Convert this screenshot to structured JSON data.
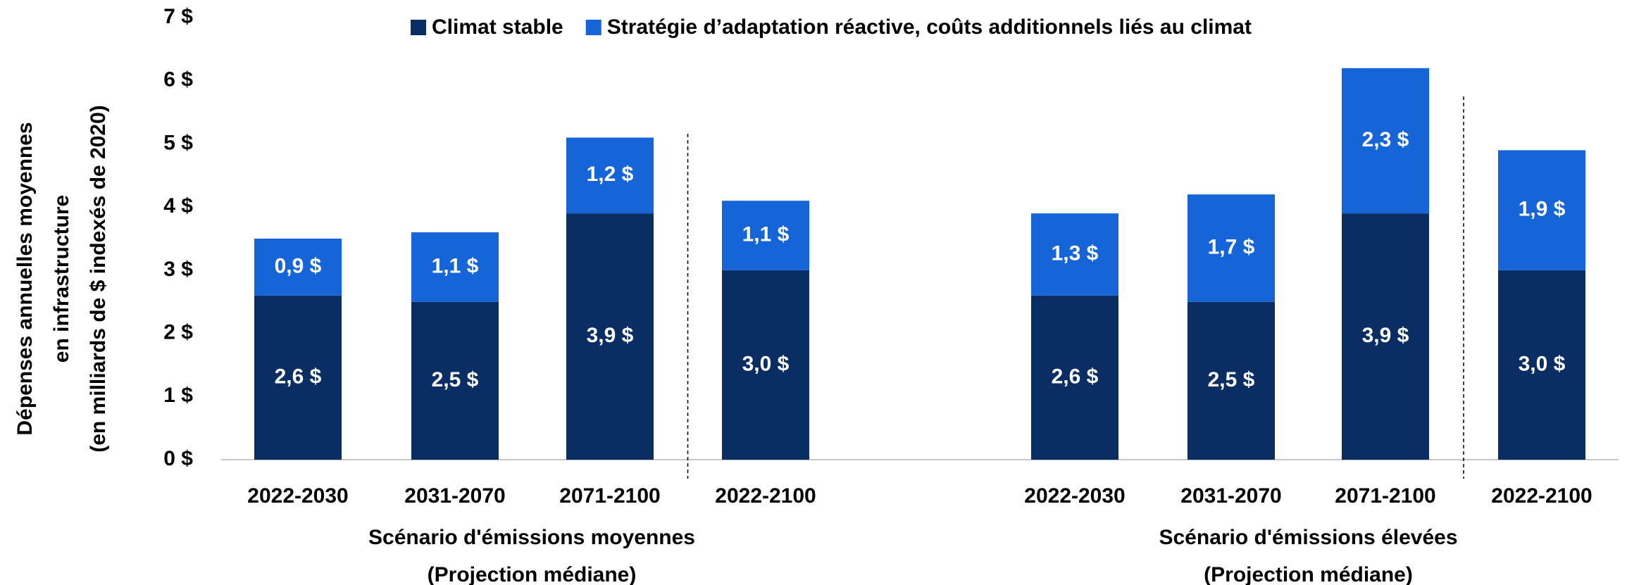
{
  "chart_data": {
    "type": "stacked_bar",
    "y_label": [
      "Dépenses annuelles moyennes",
      "en infrastructure",
      "(en milliards de $ indexés de 2020)"
    ],
    "categories": [
      "2022-2030",
      "2031-2070",
      "2071-2100",
      "2022-2100",
      "2022-2030",
      "2031-2070",
      "2071-2100",
      "2022-2100"
    ],
    "groups": [
      {
        "lines": [
          "Scénario d'émissions moyennes",
          "(Projection médiane)"
        ]
      },
      {
        "lines": [
          "Scénario d'émissions élevées",
          "(Projection médiane)"
        ]
      }
    ],
    "series": [
      {
        "name": "Climat stable",
        "color": "#0a2d64",
        "values": [
          2.6,
          2.5,
          3.9,
          3.0,
          2.6,
          2.5,
          3.9,
          3.0
        ],
        "value_labels": [
          "2,6 $",
          "2,5 $",
          "3,9 $",
          "3,0 $",
          "2,6 $",
          "2,5 $",
          "3,9 $",
          "3,0 $"
        ]
      },
      {
        "name": "Stratégie d’adaptation réactive, coûts additionnels liés au climat",
        "color": "#1565d8",
        "values": [
          0.9,
          1.1,
          1.2,
          1.1,
          1.3,
          1.7,
          2.3,
          1.9
        ],
        "value_labels": [
          "0,9 $",
          "1,1 $",
          "1,2 $",
          "1,1 $",
          "1,3 $",
          "1,7 $",
          "2,3 $",
          "1,9 $"
        ]
      }
    ],
    "ylim": [
      0,
      7
    ],
    "yticks": [
      {
        "value": 0,
        "label": "0 $"
      },
      {
        "value": 1,
        "label": "1 $"
      },
      {
        "value": 2,
        "label": "2 $"
      },
      {
        "value": 3,
        "label": "3 $"
      },
      {
        "value": 4,
        "label": "4 $"
      },
      {
        "value": 5,
        "label": "5 $"
      },
      {
        "value": 6,
        "label": "6 $"
      },
      {
        "value": 7,
        "label": "7 $"
      }
    ],
    "legend": "top"
  }
}
